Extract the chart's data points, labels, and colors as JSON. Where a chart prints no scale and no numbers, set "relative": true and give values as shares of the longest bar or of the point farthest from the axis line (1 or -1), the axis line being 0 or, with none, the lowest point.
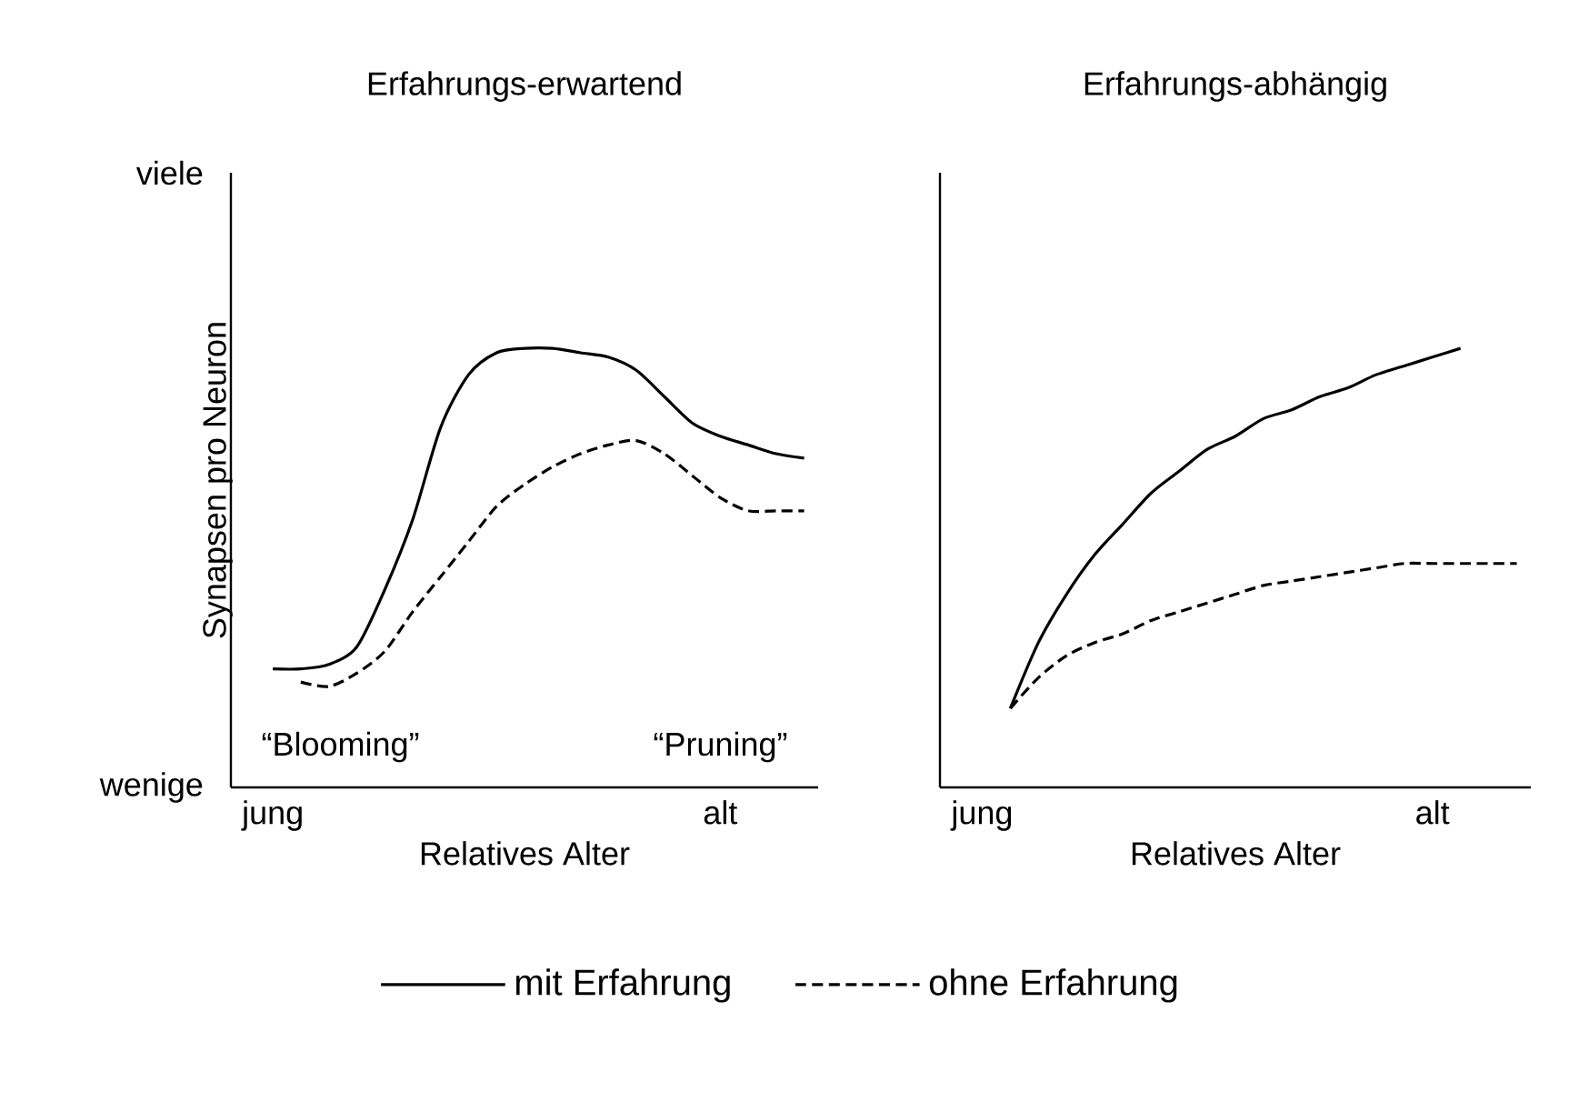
{
  "chart_data": [
    {
      "type": "line",
      "title": "Erfahrungs-erwartend",
      "xlabel": "Relatives Alter",
      "ylabel": "Synapsen pro Neuron",
      "relative": true,
      "legend": "bottom",
      "grid": false,
      "marker": "none",
      "categories": [
        null,
        "jung",
        null,
        null,
        null,
        null,
        null,
        null,
        null,
        null,
        null,
        null,
        null,
        null,
        null,
        null,
        null,
        "alt",
        null,
        null,
        null
      ],
      "annotations": [
        "viele",
        "wenige",
        "“Blooming”",
        "“Pruning”"
      ],
      "series": [
        {
          "name": "mit Erfahrung",
          "color": "#000000",
          "line_style": "solid",
          "values": [
            null,
            0.27,
            0.27,
            0.28,
            0.32,
            0.45,
            0.61,
            0.82,
            0.94,
            0.99,
            1.0,
            1.0,
            0.99,
            0.98,
            0.95,
            0.89,
            0.83,
            0.8,
            0.78,
            0.76,
            0.75
          ]
        },
        {
          "name": "ohne Erfahrung",
          "color": "#000000",
          "line_style": "dashed",
          "values": [
            null,
            null,
            0.24,
            0.23,
            0.26,
            0.31,
            0.4,
            0.48,
            0.56,
            0.64,
            0.69,
            0.73,
            0.76,
            0.78,
            0.79,
            0.76,
            0.71,
            0.66,
            0.63,
            0.63,
            0.63
          ]
        }
      ]
    },
    {
      "type": "line",
      "title": "Erfahrungs-abhängig",
      "xlabel": "Relatives Alter",
      "relative": true,
      "grid": false,
      "marker": "none",
      "categories": [
        null,
        "jung",
        null,
        null,
        null,
        null,
        null,
        null,
        null,
        null,
        null,
        null,
        null,
        null,
        null,
        null,
        null,
        "alt",
        null,
        null,
        null
      ],
      "series": [
        {
          "color": "#000000",
          "line_style": "solid",
          "values": [
            null,
            null,
            0.18,
            0.33,
            0.44,
            0.53,
            0.6,
            0.67,
            0.72,
            0.77,
            0.8,
            0.84,
            0.86,
            0.89,
            0.91,
            0.94,
            0.96,
            0.98,
            1.0,
            null,
            null
          ]
        },
        {
          "color": "#000000",
          "line_style": "dashed",
          "values": [
            null,
            null,
            0.18,
            0.25,
            0.3,
            0.33,
            0.35,
            0.38,
            0.4,
            0.42,
            0.44,
            0.46,
            0.47,
            0.48,
            0.49,
            0.5,
            0.51,
            0.51,
            0.51,
            0.51,
            0.51
          ]
        }
      ]
    }
  ]
}
